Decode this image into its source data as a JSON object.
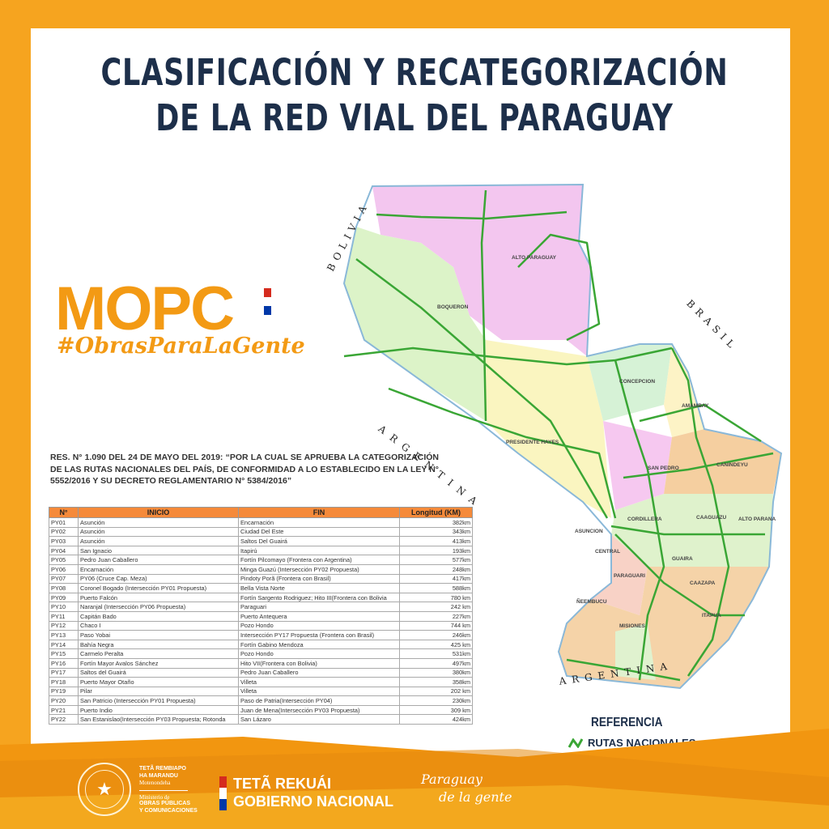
{
  "title": {
    "line1": "CLASIFICACIÓN Y RECATEGORIZACIÓN",
    "line2": "DE LA RED VIAL DEL PARAGUAY"
  },
  "logo": {
    "name": "MOPC",
    "hashtag": "#ObrasParaLaGente"
  },
  "resolution": "RES. N° 1.090 DEL 24 DE MAYO DEL 2019: “POR LA CUAL SE APRUEBA LA CATEGORIZACIÓN DE LAS RUTAS NACIONALES DEL PAÍS, DE CONFORMIDAD A LO ESTABLECIDO EN LA LEY N° 5552/2016 Y SU DECRETO REGLAMENTARIO N° 5384/2016”",
  "table": {
    "headers": [
      "N°",
      "INICIO",
      "FIN",
      "Longitud (KM)"
    ],
    "rows": [
      [
        "PY01",
        "Asunción",
        "Encarnación",
        "382km"
      ],
      [
        "PY02",
        "Asunción",
        "Ciudad Del Este",
        "343km"
      ],
      [
        "PY03",
        "Asunción",
        "Saltos Del Guairá",
        "413km"
      ],
      [
        "PY04",
        "San Ignacio",
        "Itapirú",
        "193km"
      ],
      [
        "PY05",
        "Pedro Juan Caballero",
        "Fortín Pilcomayo (Frontera con Argentina)",
        "577km"
      ],
      [
        "PY06",
        "Encarnación",
        "Minga Guazú (Intersección PY02 Propuesta)",
        "248km"
      ],
      [
        "PY07",
        "PY06 (Cruce Cap. Meza)",
        "Pindoty Porã (Frontera con Brasil)",
        "417km"
      ],
      [
        "PY08",
        "Coronel Bogado (Intersección PY01 Propuesta)",
        "Bella Vista Norte",
        "588km"
      ],
      [
        "PY09",
        "Puerto Falcón",
        "Fortín Sargento Rodriguez; Hito III(Frontera con Bolivia",
        "780 km"
      ],
      [
        "PY10",
        "Naranjal (Intersección PY06 Propuesta)",
        "Paraguari",
        "242 km"
      ],
      [
        "PY11",
        "Capitán Bado",
        "Puerto Antequera",
        "227km"
      ],
      [
        "PY12",
        "Chaco I",
        "Pozo Hondo",
        "744 km"
      ],
      [
        "PY13",
        "Paso Yobai",
        "Intersección PY17 Propuesta (Frontera con Brasil)",
        "246km"
      ],
      [
        "PY14",
        "Bahía Negra",
        "Fortín Gabino Mendoza",
        "425 km"
      ],
      [
        "PY15",
        "Carmelo Peralta",
        "Pozo Hondo",
        "531km"
      ],
      [
        "PY16",
        "Fortín Mayor Avalos Sánchez",
        "Hito VII(Frontera con Bolivia)",
        "497km"
      ],
      [
        "PY17",
        "Saltos del Guairá",
        "Pedro Juan Caballero",
        "380km"
      ],
      [
        "PY18",
        "Puerto Mayor Otaño",
        "Villeta",
        "358km"
      ],
      [
        "PY19",
        "Pilar",
        "Villeta",
        "202 km"
      ],
      [
        "PY20",
        "San Patricio (Intersección PY01 Propuesta)",
        "Paso de Patria(Intersección PY04)",
        "230km"
      ],
      [
        "PY21",
        "Puerto Indio",
        "Juan de Mena(Intersección PY03 Propuesta)",
        "309 km"
      ],
      [
        "PY22",
        "San Estanislao(Intersección PY03 Propuesta; Rotonda",
        "San Lázaro",
        "424km"
      ]
    ]
  },
  "map": {
    "countries": {
      "bolivia": "BOLIVIA",
      "brasil": "BRASIL",
      "argentina1": "ARGENTINA",
      "argentina2": "ARGENTINA"
    },
    "departments": [
      "ALTO PARAGUAY",
      "BOQUERON",
      "PRESIDENTE HAYES",
      "CONCEPCION",
      "AMAMBAY",
      "SAN PEDRO",
      "CANINDEYU",
      "CORDILLERA",
      "CAAGUAZU",
      "ALTO PARANA",
      "ASUNCION",
      "CENTRAL",
      "GUAIRA",
      "PARAGUARI",
      "CAAZAPA",
      "ÑEEMBUCU",
      "MISIONES",
      "ITAPUA"
    ]
  },
  "legend": {
    "title": "REFERENCIA",
    "item": "RUTAS NACIONALES",
    "color": "#3aa635"
  },
  "footer": {
    "ministry_line1": "TETÃ REMBIAPO",
    "ministry_line2": "HA MARANDU",
    "ministry_line3": "Motenondeha",
    "ministry_line4": "Ministerio de",
    "ministry_line5": "OBRAS PÚBLICAS",
    "ministry_line6": "Y COMUNICACIONES",
    "gov_line1": "TETÃ REKUÁI",
    "gov_line2": "GOBIERNO NACIONAL",
    "slogan_line1": "Paraguay",
    "slogan_line2": "de la gente"
  },
  "colors": {
    "orange": "#f6a41f",
    "navy": "#1d2f4a",
    "road": "#3aa635"
  }
}
